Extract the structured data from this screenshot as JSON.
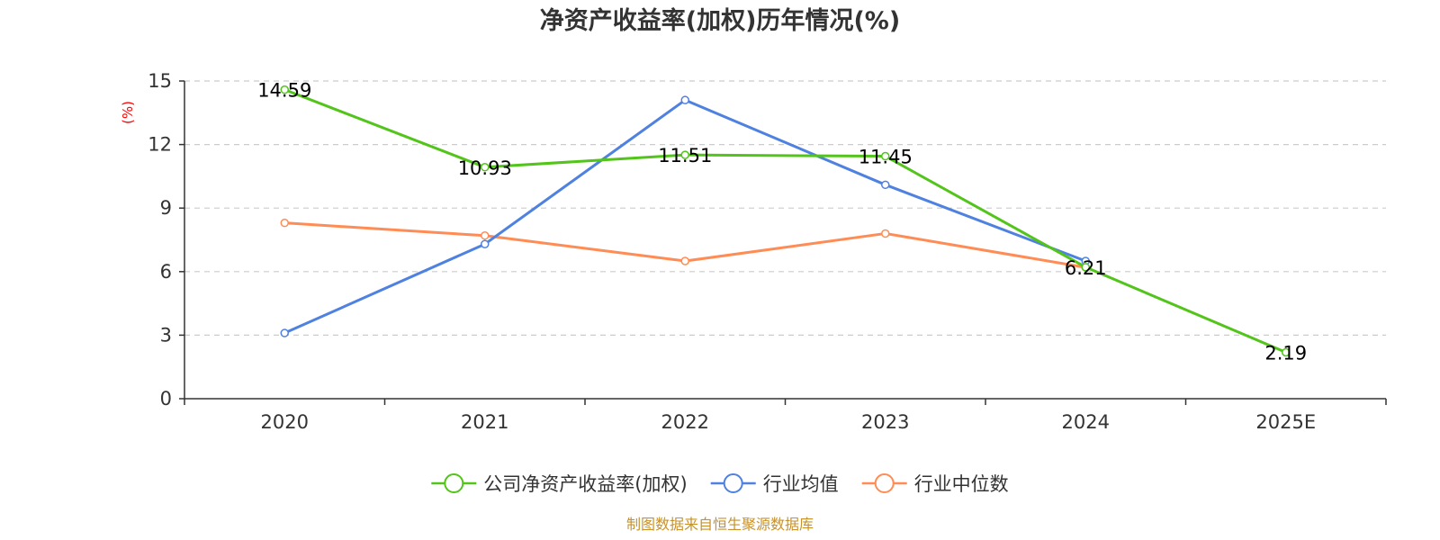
{
  "chart_data": {
    "type": "line",
    "title": "净资产收益率(加权)历年情况(%)",
    "ylabel": "(%)",
    "xlabel": "",
    "categories": [
      "2020",
      "2021",
      "2022",
      "2023",
      "2024",
      "2025E"
    ],
    "ylim": [
      0,
      15
    ],
    "yticks": [
      0,
      3,
      6,
      9,
      12,
      15
    ],
    "grid": true,
    "legend_position": "bottom",
    "series": [
      {
        "name": "公司净资产收益率(加权)",
        "color": "#52c41a",
        "values": [
          14.59,
          10.93,
          11.51,
          11.45,
          6.21,
          2.19
        ],
        "labels": [
          "14.59",
          "10.93",
          "11.51",
          "11.45",
          "6.21",
          "2.19"
        ]
      },
      {
        "name": "行业均值",
        "color": "#4f81e0",
        "values": [
          3.1,
          7.3,
          14.1,
          10.1,
          6.5,
          null
        ]
      },
      {
        "name": "行业中位数",
        "color": "#ff8c55",
        "values": [
          8.3,
          7.7,
          6.5,
          7.8,
          6.2,
          null
        ]
      }
    ]
  },
  "footer": {
    "source": "制图数据来自恒生聚源数据库"
  }
}
